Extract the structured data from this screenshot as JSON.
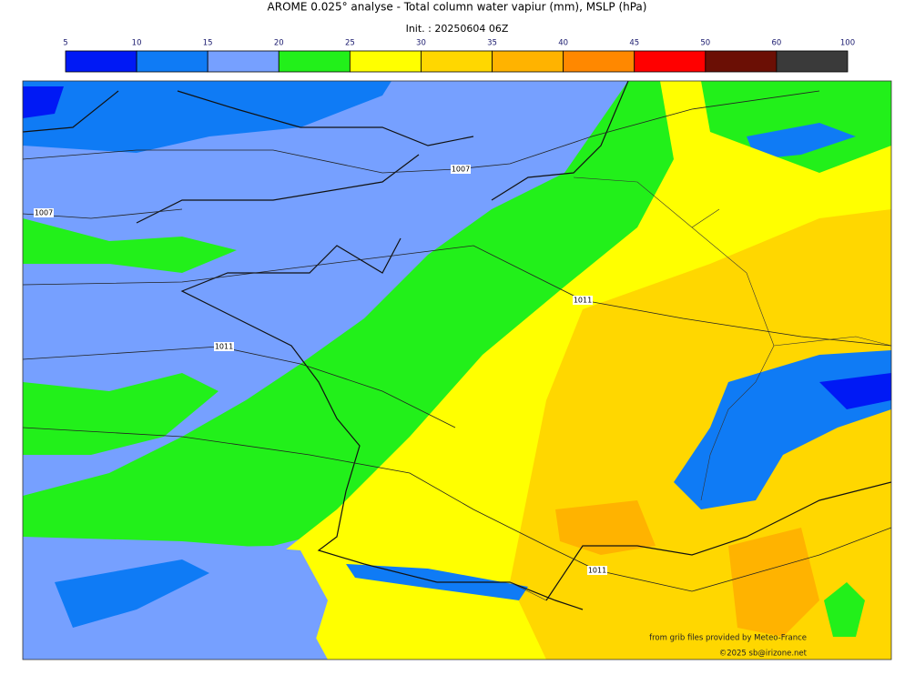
{
  "header": {
    "title": "AROME 0.025° analyse - Total column water vapiur (mm), MSLP (hPa)",
    "subtitle": "Init. : 20250604 06Z"
  },
  "colorbar": {
    "ticks": [
      5,
      10,
      15,
      20,
      25,
      30,
      35,
      40,
      45,
      50,
      60,
      100
    ],
    "colors": [
      "#0019f5",
      "#0f7bf5",
      "#76a0ff",
      "#22f01a",
      "#ffff00",
      "#ffd700",
      "#ffb300",
      "#ff8800",
      "#ff0000",
      "#6b0f05",
      "#3a3a3a"
    ]
  },
  "map": {
    "isobar_labels": [
      "1007",
      "1007",
      "1011",
      "1011",
      "1011"
    ],
    "credits": [
      "from grib files provided by Meteo-France",
      "©2025 sb@irizone.net"
    ]
  }
}
